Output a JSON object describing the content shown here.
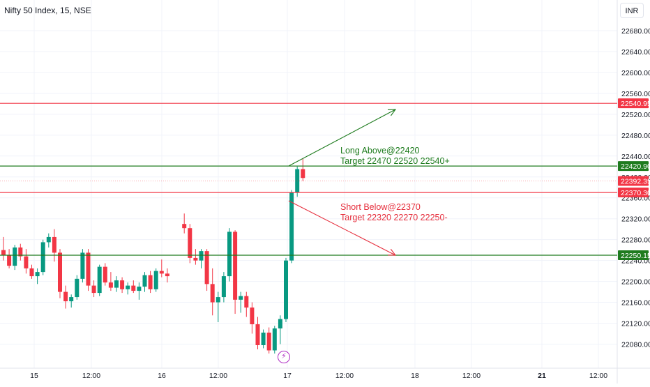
{
  "header": {
    "symbol_label": "Nifty 50 Index, 15, NSE",
    "currency_button": "INR"
  },
  "price_axis": {
    "ticks": [
      "22680.00",
      "22640.00",
      "22600.00",
      "22560.00",
      "22520.00",
      "22480.00",
      "22440.00",
      "22400.00",
      "22360.00",
      "22320.00",
      "22280.00",
      "22240.00",
      "22200.00",
      "22160.00",
      "22120.00",
      "22080.00"
    ]
  },
  "time_axis": {
    "ticks": [
      "15",
      "12:00",
      "16",
      "12:00",
      "17",
      "12:00",
      "18",
      "12:00",
      "21",
      "12:00"
    ]
  },
  "levels": [
    {
      "label": "22540.95",
      "value": 22540.95,
      "color": "#f23645"
    },
    {
      "label": "22420.90",
      "value": 22420.9,
      "color": "#1e7b1e"
    },
    {
      "label": "22392.35",
      "value": 22392.35,
      "color": "#f23645",
      "dashed": true
    },
    {
      "label": "22370.30",
      "value": 22370.3,
      "color": "#f23645"
    },
    {
      "label": "22250.15",
      "value": 22250.15,
      "color": "#1e7b1e"
    }
  ],
  "annotations": {
    "long_line1": "Long Above@22420",
    "long_line2": "Target 22470 22520 22540+",
    "short_line1": "Short Below@22370",
    "short_line2": "Target 22320 22270 22250-"
  },
  "flash_icon": "lightning-bolt-icon",
  "colors": {
    "up": "#089981",
    "down": "#f23645",
    "long": "#1e7b1e",
    "short": "#e62e3c"
  },
  "chart_data": {
    "type": "candlestick",
    "ylim": [
      22060,
      22700
    ],
    "candles": [
      [
        22260,
        22285,
        22240,
        22250
      ],
      [
        22250,
        22262,
        22225,
        22230
      ],
      [
        22230,
        22270,
        22222,
        22265
      ],
      [
        22265,
        22272,
        22240,
        22248
      ],
      [
        22248,
        22262,
        22215,
        22225
      ],
      [
        22225,
        22232,
        22205,
        22210
      ],
      [
        22210,
        22225,
        22195,
        22218
      ],
      [
        22218,
        22280,
        22212,
        22275
      ],
      [
        22275,
        22292,
        22265,
        22285
      ],
      [
        22285,
        22300,
        22238,
        22255
      ],
      [
        22255,
        22262,
        22168,
        22180
      ],
      [
        22180,
        22192,
        22148,
        22162
      ],
      [
        22162,
        22175,
        22150,
        22170
      ],
      [
        22170,
        22212,
        22165,
        22205
      ],
      [
        22205,
        22262,
        22198,
        22255
      ],
      [
        22255,
        22262,
        22182,
        22192
      ],
      [
        22192,
        22202,
        22170,
        22178
      ],
      [
        22178,
        22232,
        22172,
        22228
      ],
      [
        22228,
        22235,
        22192,
        22198
      ],
      [
        22198,
        22218,
        22182,
        22188
      ],
      [
        22188,
        22210,
        22180,
        22202
      ],
      [
        22202,
        22208,
        22178,
        22185
      ],
      [
        22185,
        22198,
        22175,
        22192
      ],
      [
        22192,
        22202,
        22178,
        22182
      ],
      [
        22182,
        22198,
        22165,
        22190
      ],
      [
        22190,
        22218,
        22180,
        22212
      ],
      [
        22212,
        22220,
        22178,
        22185
      ],
      [
        22185,
        22225,
        22180,
        22220
      ],
      [
        22220,
        22242,
        22208,
        22215
      ],
      [
        22215,
        22225,
        22198,
        22210
      ],
      [
        22310,
        22330,
        22292,
        22302
      ],
      [
        22302,
        22310,
        22235,
        22245
      ],
      [
        22245,
        22262,
        22232,
        22240
      ],
      [
        22240,
        22262,
        22225,
        22258
      ],
      [
        22258,
        22262,
        22182,
        22195
      ],
      [
        22195,
        22225,
        22135,
        22160
      ],
      [
        22160,
        22180,
        22122,
        22170
      ],
      [
        22170,
        22218,
        22160,
        22210
      ],
      [
        22210,
        22302,
        22200,
        22295
      ],
      [
        22295,
        22298,
        22138,
        22165
      ],
      [
        22165,
        22180,
        22140,
        22172
      ],
      [
        22172,
        22180,
        22132,
        22150
      ],
      [
        22150,
        22160,
        22100,
        22118
      ],
      [
        22118,
        22132,
        22070,
        22078
      ],
      [
        22078,
        22108,
        22072,
        22102
      ],
      [
        22102,
        22112,
        22062,
        22068
      ],
      [
        22068,
        22115,
        22062,
        22110
      ],
      [
        22110,
        22135,
        22080,
        22128
      ],
      [
        22128,
        22245,
        22122,
        22240
      ],
      [
        22240,
        22375,
        22235,
        22370
      ],
      [
        22370,
        22420,
        22362,
        22415
      ],
      [
        22415,
        22435,
        22392,
        22398
      ]
    ],
    "annotations": [
      "Long Above@22420",
      "Target 22470 22520 22540+",
      "Short Below@22370",
      "Target 22320 22270 22250-"
    ]
  }
}
